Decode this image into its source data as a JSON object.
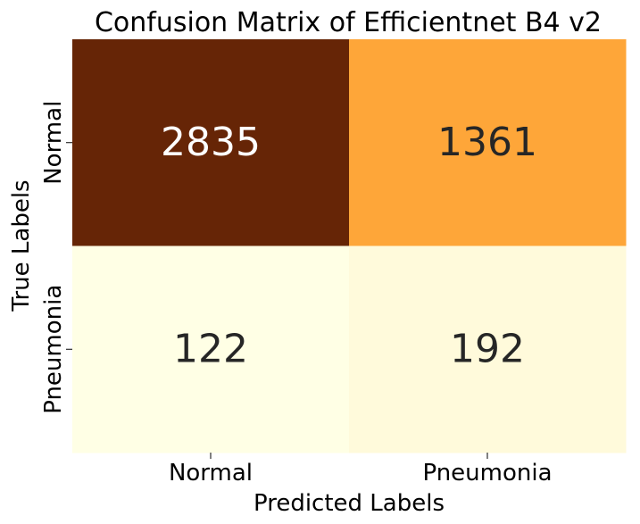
{
  "chart_data": {
    "type": "heatmap",
    "title": "Confusion Matrix of Efficientnet B4 v2",
    "xlabel": "Predicted Labels",
    "ylabel": "True Labels",
    "x_categories": [
      "Normal",
      "Pneumonia"
    ],
    "y_categories": [
      "Normal",
      "Pneumonia"
    ],
    "values": [
      [
        2835,
        1361
      ],
      [
        122,
        192
      ]
    ],
    "colormap": "YlOrBr",
    "colorbar": false,
    "cell_colors": [
      [
        "#662506",
        "#fea639"
      ],
      [
        "#ffffe5",
        "#fffadb"
      ]
    ],
    "annotation_colors": [
      [
        "#ffffff",
        "#262626"
      ],
      [
        "#262626",
        "#262626"
      ]
    ]
  }
}
